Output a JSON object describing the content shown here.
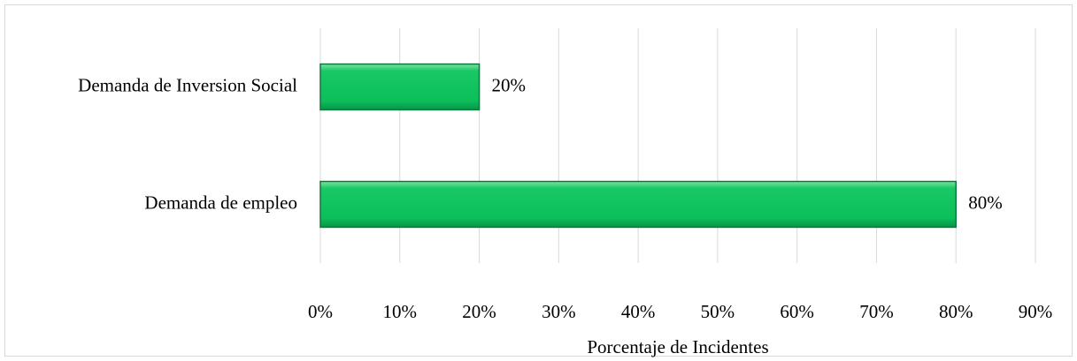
{
  "chart_data": {
    "type": "bar",
    "orientation": "horizontal",
    "categories": [
      "Demanda de Inversion Social",
      "Demanda de empleo"
    ],
    "values": [
      20,
      80
    ],
    "value_labels": [
      "20%",
      "80%"
    ],
    "color": "#0cbf5a",
    "xlabel": "Porcentaje de Incidentes",
    "xlim": [
      0,
      90
    ],
    "xticks": [
      {
        "value": 0,
        "label": "0%"
      },
      {
        "value": 10,
        "label": "10%"
      },
      {
        "value": 20,
        "label": "20%"
      },
      {
        "value": 30,
        "label": "30%"
      },
      {
        "value": 40,
        "label": "40%"
      },
      {
        "value": 50,
        "label": "50%"
      },
      {
        "value": 60,
        "label": "60%"
      },
      {
        "value": 70,
        "label": "70%"
      },
      {
        "value": 80,
        "label": "80%"
      },
      {
        "value": 90,
        "label": "90%"
      }
    ],
    "grid": true
  }
}
